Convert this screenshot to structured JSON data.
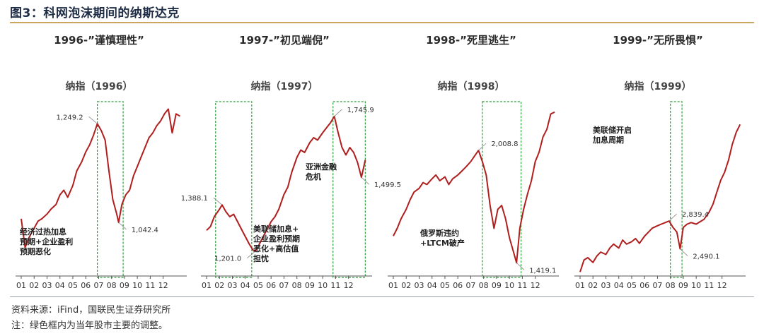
{
  "figure": {
    "title": "图3：科网泡沫期间的纳斯达克"
  },
  "footer": {
    "source": "资料来源：iFind，国联民生证券研究所",
    "note": "注：绿色框内为当年股市主要的调整。"
  },
  "colors": {
    "line": "#b01e1e",
    "box": "#2e9e3e",
    "title": "#1f2c45",
    "rule": "#c8a75c"
  },
  "chart_data": [
    {
      "type": "line",
      "heading": "1996-”谨慎理性”",
      "title": "纳指（1996）",
      "x_ticks": [
        "01",
        "02",
        "03",
        "04",
        "05",
        "06",
        "07",
        "08",
        "09",
        "10",
        "11",
        "12"
      ],
      "ylim": [
        930,
        1300
      ],
      "box": [
        5.9,
        7.9
      ],
      "values": [
        [
          0,
          1050
        ],
        [
          0.3,
          990
        ],
        [
          0.6,
          1010
        ],
        [
          1,
          1030
        ],
        [
          1.3,
          1045
        ],
        [
          1.6,
          1050
        ],
        [
          2,
          1060
        ],
        [
          2.3,
          1070
        ],
        [
          2.7,
          1080
        ],
        [
          3,
          1100
        ],
        [
          3.3,
          1110
        ],
        [
          3.6,
          1095
        ],
        [
          4,
          1120
        ],
        [
          4.3,
          1150
        ],
        [
          4.7,
          1170
        ],
        [
          5,
          1190
        ],
        [
          5.3,
          1205
        ],
        [
          5.6,
          1225
        ],
        [
          5.9,
          1249.2
        ],
        [
          6.2,
          1235
        ],
        [
          6.5,
          1215
        ],
        [
          6.8,
          1150
        ],
        [
          7.1,
          1090
        ],
        [
          7.4,
          1060
        ],
        [
          7.55,
          1042.4
        ],
        [
          7.8,
          1080
        ],
        [
          8.1,
          1100
        ],
        [
          8.4,
          1110
        ],
        [
          8.7,
          1140
        ],
        [
          9,
          1160
        ],
        [
          9.3,
          1180
        ],
        [
          9.6,
          1200
        ],
        [
          9.9,
          1220
        ],
        [
          10.2,
          1230
        ],
        [
          10.5,
          1245
        ],
        [
          10.8,
          1255
        ],
        [
          11.1,
          1270
        ],
        [
          11.4,
          1280
        ],
        [
          11.7,
          1230
        ],
        [
          12,
          1270
        ],
        [
          12.3,
          1265
        ]
      ],
      "annotations": [
        {
          "label": "1,249.2",
          "x": 5.9,
          "y": 1249.2
        },
        {
          "label": "1,042.4",
          "x": 7.55,
          "y": 1042.4
        }
      ],
      "notes": [
        "经济过热加息",
        "预期+企业盈利",
        "预期恶化"
      ]
    },
    {
      "type": "line",
      "heading": "1997-”初见端倪”",
      "title": "纳指（1997）",
      "x_ticks": [
        "01",
        "02",
        "03",
        "04",
        "05",
        "06",
        "07",
        "08",
        "09",
        "10",
        "11",
        "12"
      ],
      "ylim": [
        1100,
        1800
      ],
      "box": [
        [
          0.7,
          3.5
        ],
        [
          9.8,
          12.3
        ]
      ],
      "values": [
        [
          0,
          1285
        ],
        [
          0.3,
          1300
        ],
        [
          0.6,
          1340
        ],
        [
          1,
          1370
        ],
        [
          1.2,
          1388.1
        ],
        [
          1.5,
          1360
        ],
        [
          1.8,
          1340
        ],
        [
          2.1,
          1350
        ],
        [
          2.4,
          1320
        ],
        [
          2.7,
          1290
        ],
        [
          3,
          1260
        ],
        [
          3.3,
          1230
        ],
        [
          3.6,
          1205
        ],
        [
          3.8,
          1201.0
        ],
        [
          4,
          1220
        ],
        [
          4.3,
          1250
        ],
        [
          4.6,
          1280
        ],
        [
          5,
          1320
        ],
        [
          5.3,
          1340
        ],
        [
          5.6,
          1370
        ],
        [
          6,
          1430
        ],
        [
          6.3,
          1460
        ],
        [
          6.6,
          1520
        ],
        [
          7,
          1580
        ],
        [
          7.3,
          1610
        ],
        [
          7.6,
          1600
        ],
        [
          8,
          1640
        ],
        [
          8.3,
          1660
        ],
        [
          8.6,
          1650
        ],
        [
          9,
          1680
        ],
        [
          9.3,
          1700
        ],
        [
          9.6,
          1720
        ],
        [
          9.9,
          1745.9
        ],
        [
          10.2,
          1680
        ],
        [
          10.5,
          1620
        ],
        [
          10.8,
          1590
        ],
        [
          11.1,
          1620
        ],
        [
          11.4,
          1600
        ],
        [
          11.7,
          1560
        ],
        [
          12,
          1499.5
        ],
        [
          12.3,
          1570
        ]
      ],
      "annotations": [
        {
          "label": "1,388.1",
          "x": 1.2,
          "y": 1388.1
        },
        {
          "label": "1,201.0",
          "x": 3.8,
          "y": 1201.0
        },
        {
          "label": "1,745.9",
          "x": 9.9,
          "y": 1745.9
        },
        {
          "label": "1,499.5",
          "x": 12.0,
          "y": 1499.5
        }
      ],
      "notes": [
        "美联储加息+",
        "企业盈利预期",
        "恶化+高估值",
        "担忧"
      ],
      "notes2": [
        "亚洲金融",
        "危机"
      ]
    },
    {
      "type": "line",
      "heading": "1998-”死里逃生”",
      "title": "纳指（1998）",
      "x_ticks": [
        "01",
        "02",
        "03",
        "04",
        "05",
        "06",
        "07",
        "08",
        "09",
        "10",
        "11",
        "12"
      ],
      "ylim": [
        1350,
        2250
      ],
      "box": [
        6.9,
        9.9
      ],
      "values": [
        [
          0,
          1560
        ],
        [
          0.3,
          1600
        ],
        [
          0.6,
          1650
        ],
        [
          1,
          1700
        ],
        [
          1.3,
          1750
        ],
        [
          1.6,
          1790
        ],
        [
          2,
          1810
        ],
        [
          2.3,
          1840
        ],
        [
          2.6,
          1830
        ],
        [
          3,
          1860
        ],
        [
          3.3,
          1880
        ],
        [
          3.6,
          1850
        ],
        [
          4,
          1870
        ],
        [
          4.3,
          1830
        ],
        [
          4.6,
          1860
        ],
        [
          5,
          1880
        ],
        [
          5.3,
          1900
        ],
        [
          5.6,
          1920
        ],
        [
          6,
          1950
        ],
        [
          6.3,
          1980
        ],
        [
          6.6,
          2008.8
        ],
        [
          6.9,
          1950
        ],
        [
          7.2,
          1880
        ],
        [
          7.5,
          1720
        ],
        [
          7.8,
          1600
        ],
        [
          8.1,
          1700
        ],
        [
          8.4,
          1720
        ],
        [
          8.7,
          1650
        ],
        [
          9,
          1550
        ],
        [
          9.3,
          1480
        ],
        [
          9.55,
          1419.1
        ],
        [
          9.8,
          1600
        ],
        [
          10.1,
          1700
        ],
        [
          10.4,
          1780
        ],
        [
          10.7,
          1850
        ],
        [
          11,
          1950
        ],
        [
          11.3,
          2000
        ],
        [
          11.6,
          2080
        ],
        [
          11.9,
          2120
        ],
        [
          12.2,
          2200
        ],
        [
          12.5,
          2210
        ]
      ],
      "annotations": [
        {
          "label": "2,008.8",
          "x": 6.6,
          "y": 2008.8
        },
        {
          "label": "1,419.1",
          "x": 9.55,
          "y": 1419.1
        }
      ],
      "notes": [
        "俄罗斯违约",
        "+LTCM破产"
      ]
    },
    {
      "type": "line",
      "heading": "1999-”无所畏惧”",
      "title": "纳指（1999）",
      "x_ticks": [
        "01",
        "02",
        "03",
        "04",
        "05",
        "06",
        "07",
        "08",
        "09",
        "10",
        "11",
        "12"
      ],
      "ylim": [
        2150,
        4300
      ],
      "box": [
        7.0,
        7.9
      ],
      "values": [
        [
          0,
          2200
        ],
        [
          0.3,
          2350
        ],
        [
          0.6,
          2380
        ],
        [
          1,
          2320
        ],
        [
          1.3,
          2400
        ],
        [
          1.6,
          2450
        ],
        [
          2,
          2420
        ],
        [
          2.3,
          2500
        ],
        [
          2.6,
          2550
        ],
        [
          3,
          2500
        ],
        [
          3.3,
          2600
        ],
        [
          3.6,
          2550
        ],
        [
          4,
          2580
        ],
        [
          4.3,
          2620
        ],
        [
          4.6,
          2560
        ],
        [
          5,
          2650
        ],
        [
          5.3,
          2700
        ],
        [
          5.6,
          2750
        ],
        [
          6,
          2780
        ],
        [
          6.3,
          2800
        ],
        [
          6.6,
          2820
        ],
        [
          6.9,
          2839.4
        ],
        [
          7.2,
          2760
        ],
        [
          7.5,
          2700
        ],
        [
          7.75,
          2490.1
        ],
        [
          8,
          2760
        ],
        [
          8.3,
          2800
        ],
        [
          8.6,
          2820
        ],
        [
          9,
          2800
        ],
        [
          9.3,
          2830
        ],
        [
          9.6,
          2860
        ],
        [
          10,
          2950
        ],
        [
          10.3,
          3050
        ],
        [
          10.6,
          3200
        ],
        [
          10.9,
          3350
        ],
        [
          11.2,
          3450
        ],
        [
          11.5,
          3600
        ],
        [
          11.8,
          3800
        ],
        [
          12.1,
          3950
        ],
        [
          12.4,
          4050
        ]
      ],
      "annotations": [
        {
          "label": "2,839.4",
          "x": 6.9,
          "y": 2839.4
        },
        {
          "label": "2,490.1",
          "x": 7.75,
          "y": 2490.1
        }
      ],
      "notes": [
        "美联储开启",
        "加息周期"
      ]
    }
  ]
}
